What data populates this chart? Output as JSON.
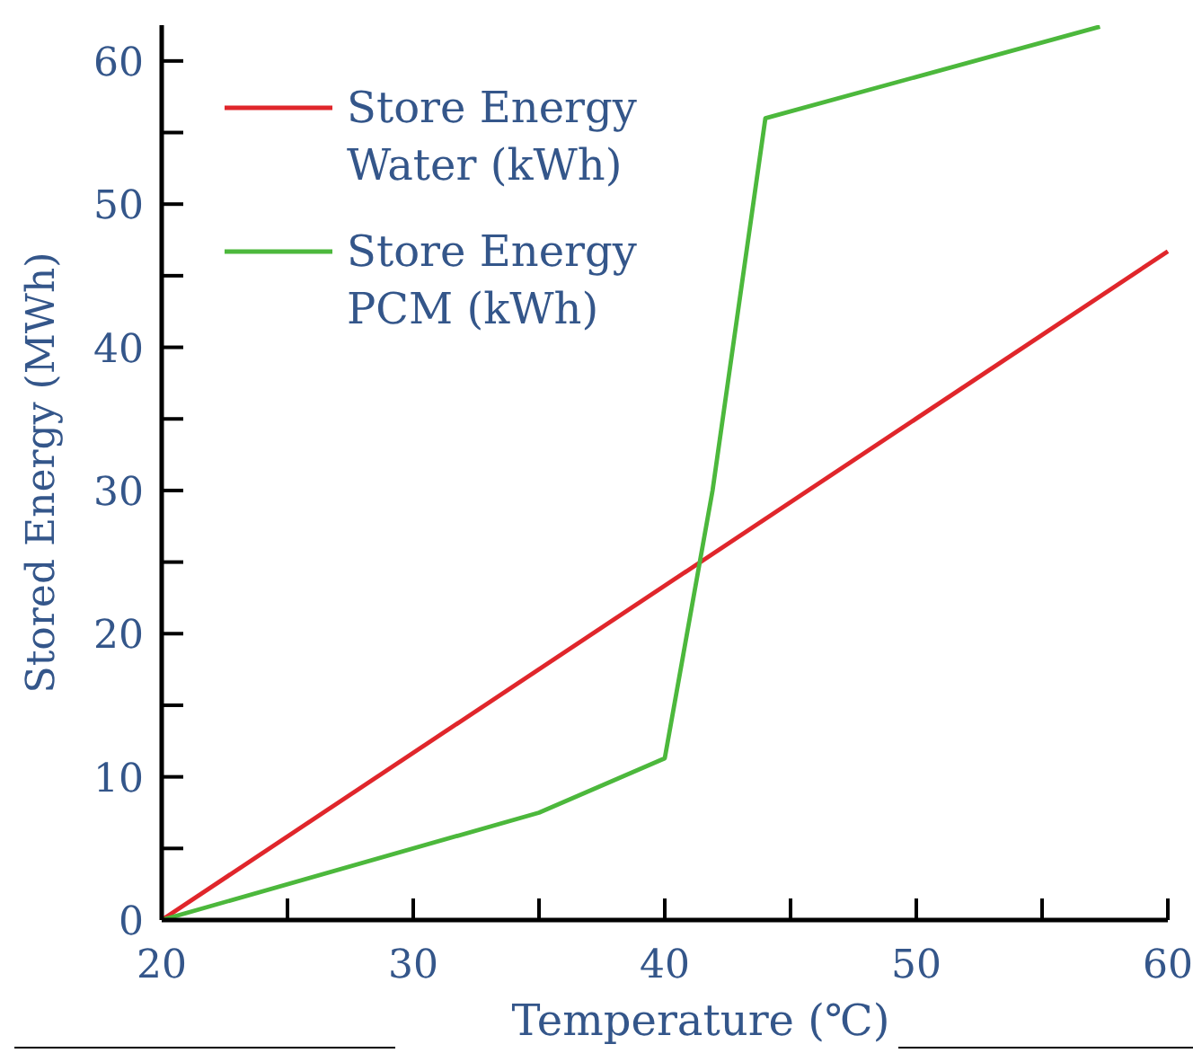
{
  "chart_data": {
    "type": "line",
    "xlabel": "Temperature (℃)",
    "ylabel": "Stored Energy (MWh)",
    "xlim": [
      20,
      60
    ],
    "ylim": [
      0,
      62.5
    ],
    "xticks": [
      20,
      {
        "value": 25,
        "label": null
      },
      30,
      {
        "value": 35,
        "label": null
      },
      40,
      {
        "value": 45,
        "label": null
      },
      50,
      {
        "value": 55,
        "label": null
      },
      60
    ],
    "yticks": [
      0,
      {
        "value": 5,
        "label": null
      },
      10,
      {
        "value": 15,
        "label": null
      },
      20,
      {
        "value": 25,
        "label": null
      },
      30,
      {
        "value": 35,
        "label": null
      },
      40,
      {
        "value": 45,
        "label": null
      },
      50,
      {
        "value": 55,
        "label": null
      },
      60
    ],
    "grid": false,
    "legend": "top left",
    "marker": "none",
    "line_style": "solid",
    "series": [
      {
        "name": "Store Energy Water (kWh)",
        "color": "#e0262b",
        "x": [
          20,
          60
        ],
        "values": [
          0,
          46.7
        ]
      },
      {
        "name": "Store Energy PCM (kWh)",
        "color": "#4cb83c",
        "x": [
          20,
          35,
          40,
          41.9,
          44,
          57.3
        ],
        "values": [
          0,
          7.5,
          11.3,
          30,
          56,
          62.4
        ]
      }
    ]
  }
}
